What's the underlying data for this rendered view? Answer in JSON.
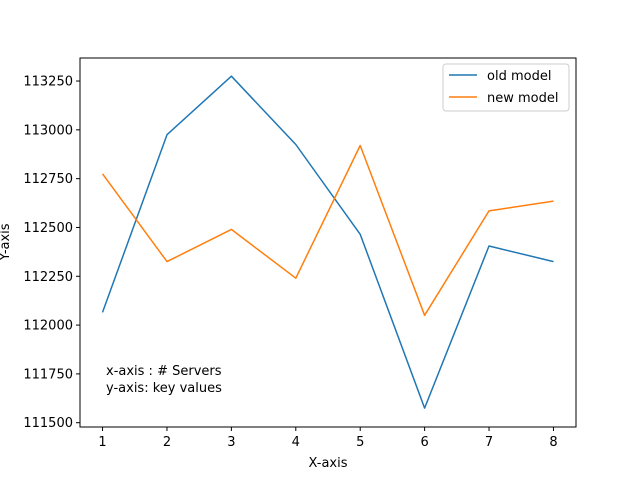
{
  "chart_data": {
    "type": "line",
    "title": "",
    "xlabel": "X-axis",
    "ylabel": "Y-axis",
    "x": [
      1,
      2,
      3,
      4,
      5,
      6,
      7,
      8
    ],
    "xlim": [
      0.65,
      8.35
    ],
    "ylim": [
      111478,
      113368
    ],
    "xticks": [
      "1",
      "2",
      "3",
      "4",
      "5",
      "6",
      "7",
      "8"
    ],
    "yticks": [
      111500,
      111750,
      112000,
      112250,
      112500,
      112750,
      113000,
      113250
    ],
    "ytick_labels": [
      "111500",
      "111750",
      "112000",
      "112250",
      "112500",
      "112750",
      "113000",
      "113250"
    ],
    "grid": false,
    "legend_position": "top-right",
    "series": [
      {
        "name": "old model",
        "color": "#1f77b4",
        "values": [
          112065,
          112975,
          113275,
          112925,
          112465,
          111575,
          112405,
          112325
        ]
      },
      {
        "name": "new model",
        "color": "#ff7f0e",
        "values": [
          112775,
          112325,
          112490,
          112240,
          112920,
          112050,
          112585,
          112635
        ]
      }
    ],
    "annotations": [
      "x-axis : # Servers",
      "y-axis: key values"
    ]
  }
}
